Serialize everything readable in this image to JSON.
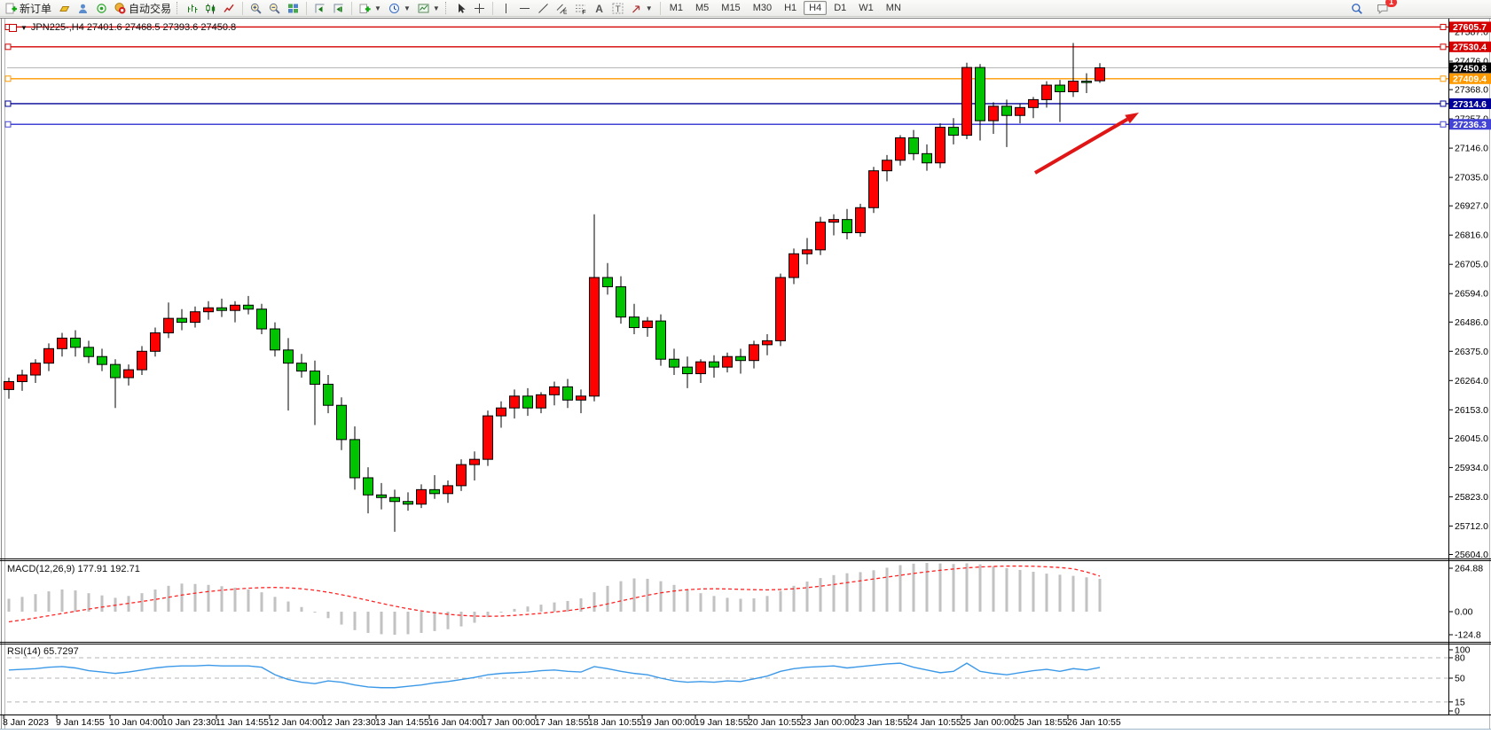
{
  "toolbar": {
    "new_order_label": "新订单",
    "auto_trading_label": "自动交易",
    "timeframes": [
      "M1",
      "M5",
      "M15",
      "M30",
      "H1",
      "H4",
      "D1",
      "W1",
      "MN"
    ],
    "active_timeframe": "H4",
    "badge_count": "1"
  },
  "chart": {
    "symbol_header": "JPN225-,H4  27401.6 27468.5 27393.6 27450.8"
  },
  "indicators": {
    "macd": {
      "label": "MACD(12,26,9) 177.91 192.71",
      "axis_labels": [
        "264.88",
        "0.00",
        "-124.8"
      ]
    },
    "rsi": {
      "label": "RSI(14) 65.7297",
      "axis_labels": [
        "100",
        "80",
        "50",
        "15",
        "0"
      ]
    }
  },
  "price_axis": {
    "ticks": [
      "27587.0",
      "27476.0",
      "27368.0",
      "27257.0",
      "27146.0",
      "27035.0",
      "26927.0",
      "26816.0",
      "26705.0",
      "26594.0",
      "26486.0",
      "26375.0",
      "26264.0",
      "26153.0",
      "26045.0",
      "25934.0",
      "25823.0",
      "25712.0",
      "25604.0"
    ],
    "tags": [
      {
        "value": "27605.7",
        "color": "#d40000"
      },
      {
        "value": "27530.4",
        "color": "#d40000"
      },
      {
        "value": "27450.8",
        "color": "#000000"
      },
      {
        "value": "27409.4",
        "color": "#ff9900"
      },
      {
        "value": "27314.6",
        "color": "#000099"
      },
      {
        "value": "27236.3",
        "color": "#4343d6"
      }
    ]
  },
  "time_axis": [
    "8 Jan 2023",
    "9 Jan 14:55",
    "10 Jan 04:00",
    "10 Jan 23:30",
    "11 Jan 14:55",
    "12 Jan 04:00",
    "12 Jan 23:30",
    "13 Jan 14:55",
    "16 Jan 04:00",
    "17 Jan 00:00",
    "17 Jan 18:55",
    "18 Jan 10:55",
    "19 Jan 00:00",
    "19 Jan 18:55",
    "20 Jan 10:55",
    "23 Jan 00:00",
    "23 Jan 18:55",
    "24 Jan 10:55",
    "25 Jan 00:00",
    "25 Jan 18:55",
    "26 Jan 10:55"
  ],
  "chart_data": {
    "type": "candlestick",
    "symbol": "JPN225-",
    "timeframe": "H4",
    "current_bar": {
      "open": 27401.6,
      "high": 27468.5,
      "low": 27393.6,
      "close": 27450.8
    },
    "up_color": "#ff0000",
    "down_color": "#00c400",
    "price_range": [
      25590,
      27614
    ],
    "horizontal_lines": [
      {
        "price": 27605.7,
        "color": "#d40000",
        "handles": true
      },
      {
        "price": 27530.4,
        "color": "#d40000",
        "handles": true
      },
      {
        "price": 27450.8,
        "color": "#b6b6b6",
        "handles": false,
        "current": true
      },
      {
        "price": 27409.4,
        "color": "#ff9900",
        "handles": true
      },
      {
        "price": 27314.6,
        "color": "#000099",
        "handles": true
      },
      {
        "price": 27236.3,
        "color": "#4343d6",
        "handles": true
      }
    ],
    "arrow_annotation": {
      "from": [
        1167,
        195
      ],
      "to": [
        1284,
        127
      ],
      "color": "#e01616"
    },
    "candles": [
      [
        26230,
        26275,
        26195,
        26260
      ],
      [
        26260,
        26305,
        26225,
        26285
      ],
      [
        26285,
        26345,
        26255,
        26330
      ],
      [
        26330,
        26405,
        26300,
        26385
      ],
      [
        26385,
        26445,
        26355,
        26425
      ],
      [
        26425,
        26455,
        26355,
        26390
      ],
      [
        26390,
        26415,
        26330,
        26355
      ],
      [
        26355,
        26385,
        26300,
        26325
      ],
      [
        26325,
        26345,
        26160,
        26275
      ],
      [
        26275,
        26325,
        26245,
        26305
      ],
      [
        26305,
        26395,
        26285,
        26375
      ],
      [
        26375,
        26465,
        26355,
        26445
      ],
      [
        26445,
        26560,
        26425,
        26500
      ],
      [
        26500,
        26535,
        26455,
        26485
      ],
      [
        26485,
        26545,
        26465,
        26525
      ],
      [
        26525,
        26565,
        26495,
        26540
      ],
      [
        26540,
        26575,
        26505,
        26530
      ],
      [
        26530,
        26565,
        26485,
        26550
      ],
      [
        26550,
        26585,
        26515,
        26535
      ],
      [
        26535,
        26555,
        26440,
        26460
      ],
      [
        26460,
        26485,
        26355,
        26380
      ],
      [
        26380,
        26425,
        26150,
        26330
      ],
      [
        26330,
        26365,
        26275,
        26300
      ],
      [
        26300,
        26340,
        26095,
        26250
      ],
      [
        26250,
        26285,
        26140,
        26170
      ],
      [
        26170,
        26200,
        26000,
        26040
      ],
      [
        26040,
        26090,
        25850,
        25895
      ],
      [
        25895,
        25935,
        25760,
        25830
      ],
      [
        25830,
        25875,
        25775,
        25820
      ],
      [
        25820,
        25850,
        25690,
        25805
      ],
      [
        25805,
        25840,
        25770,
        25795
      ],
      [
        25795,
        25870,
        25780,
        25850
      ],
      [
        25850,
        25905,
        25815,
        25835
      ],
      [
        25835,
        25885,
        25800,
        25865
      ],
      [
        25865,
        25965,
        25845,
        25945
      ],
      [
        25945,
        25995,
        25885,
        25965
      ],
      [
        25965,
        26150,
        25940,
        26130
      ],
      [
        26130,
        26185,
        26085,
        26160
      ],
      [
        26160,
        26230,
        26120,
        26205
      ],
      [
        26205,
        26235,
        26130,
        26160
      ],
      [
        26160,
        26220,
        26140,
        26210
      ],
      [
        26210,
        26260,
        26170,
        26240
      ],
      [
        26240,
        26270,
        26160,
        26190
      ],
      [
        26190,
        26230,
        26140,
        26205
      ],
      [
        26205,
        26895,
        26185,
        26655
      ],
      [
        26655,
        26710,
        26590,
        26620
      ],
      [
        26620,
        26660,
        26480,
        26505
      ],
      [
        26505,
        26555,
        26440,
        26465
      ],
      [
        26465,
        26505,
        26430,
        26490
      ],
      [
        26490,
        26515,
        26320,
        26345
      ],
      [
        26345,
        26385,
        26285,
        26315
      ],
      [
        26315,
        26355,
        26235,
        26290
      ],
      [
        26290,
        26345,
        26255,
        26335
      ],
      [
        26335,
        26360,
        26275,
        26315
      ],
      [
        26315,
        26370,
        26295,
        26355
      ],
      [
        26355,
        26385,
        26290,
        26340
      ],
      [
        26340,
        26415,
        26310,
        26400
      ],
      [
        26400,
        26440,
        26360,
        26415
      ],
      [
        26415,
        26670,
        26395,
        26655
      ],
      [
        26655,
        26765,
        26630,
        26745
      ],
      [
        26745,
        26805,
        26705,
        26760
      ],
      [
        26760,
        26885,
        26740,
        26865
      ],
      [
        26865,
        26895,
        26815,
        26875
      ],
      [
        26875,
        26915,
        26800,
        26825
      ],
      [
        26825,
        26935,
        26810,
        26920
      ],
      [
        26920,
        27075,
        26900,
        27060
      ],
      [
        27060,
        27120,
        27020,
        27100
      ],
      [
        27100,
        27195,
        27080,
        27185
      ],
      [
        27185,
        27215,
        27100,
        27125
      ],
      [
        27125,
        27160,
        27060,
        27090
      ],
      [
        27090,
        27240,
        27070,
        27225
      ],
      [
        27225,
        27260,
        27160,
        27195
      ],
      [
        27195,
        27470,
        27180,
        27452
      ],
      [
        27452,
        27465,
        27175,
        27250
      ],
      [
        27250,
        27320,
        27200,
        27305
      ],
      [
        27305,
        27330,
        27150,
        27270
      ],
      [
        27270,
        27315,
        27240,
        27300
      ],
      [
        27300,
        27340,
        27260,
        27330
      ],
      [
        27330,
        27400,
        27300,
        27385
      ],
      [
        27385,
        27405,
        27245,
        27360
      ],
      [
        27360,
        27545,
        27340,
        27400
      ],
      [
        27400,
        27430,
        27355,
        27395
      ],
      [
        27401.6,
        27468.5,
        27393.6,
        27450.8
      ]
    ],
    "macd": {
      "histogram": [
        70,
        80,
        95,
        110,
        120,
        115,
        100,
        88,
        75,
        85,
        100,
        120,
        140,
        152,
        150,
        145,
        138,
        130,
        120,
        105,
        80,
        55,
        25,
        -5,
        -35,
        -70,
        -100,
        -115,
        -122,
        -125,
        -122,
        -115,
        -105,
        -95,
        -80,
        -60,
        -30,
        -5,
        15,
        28,
        38,
        50,
        58,
        72,
        105,
        140,
        165,
        180,
        178,
        165,
        145,
        120,
        100,
        85,
        75,
        70,
        72,
        85,
        112,
        140,
        163,
        182,
        198,
        208,
        214,
        224,
        238,
        252,
        260,
        264,
        261,
        258,
        262,
        256,
        246,
        236,
        226,
        216,
        206,
        200,
        194,
        186,
        177.9
      ],
      "signal": [
        -55,
        -45,
        -34,
        -22,
        -10,
        2,
        14,
        25,
        35,
        45,
        55,
        66,
        78,
        90,
        100,
        109,
        116,
        122,
        127,
        130,
        131,
        129,
        124,
        116,
        105,
        92,
        77,
        61,
        45,
        30,
        16,
        4,
        -6,
        -14,
        -20,
        -24,
        -25,
        -24,
        -20,
        -15,
        -9,
        -2,
        6,
        15,
        27,
        42,
        58,
        74,
        89,
        102,
        112,
        119,
        123,
        124,
        123,
        121,
        119,
        118,
        120,
        124,
        130,
        138,
        147,
        157,
        167,
        177,
        187,
        197,
        207,
        216,
        224,
        231,
        237,
        242,
        245,
        247,
        247,
        246,
        243,
        239,
        232,
        215,
        192.7
      ],
      "current_values": {
        "macd": 177.91,
        "signal": 192.71
      }
    },
    "rsi": {
      "period": 14,
      "current_value": 65.7297,
      "gridlines": [
        80,
        50,
        15
      ],
      "values": [
        62,
        63,
        64,
        66,
        67,
        65,
        61,
        59,
        57,
        59,
        62,
        65,
        67,
        68,
        68,
        69,
        68,
        68,
        68,
        66,
        55,
        48,
        44,
        42,
        46,
        44,
        40,
        37,
        36,
        36,
        38,
        40,
        43,
        45,
        48,
        51,
        55,
        57,
        58,
        59,
        61,
        62,
        60,
        59,
        67,
        64,
        60,
        57,
        55,
        50,
        46,
        44,
        45,
        44,
        46,
        45,
        49,
        53,
        60,
        64,
        66,
        67,
        68,
        65,
        67,
        69,
        71,
        72,
        66,
        62,
        58,
        60,
        72,
        60,
        57,
        55,
        58,
        61,
        63,
        60,
        64,
        62,
        65.7
      ]
    }
  }
}
